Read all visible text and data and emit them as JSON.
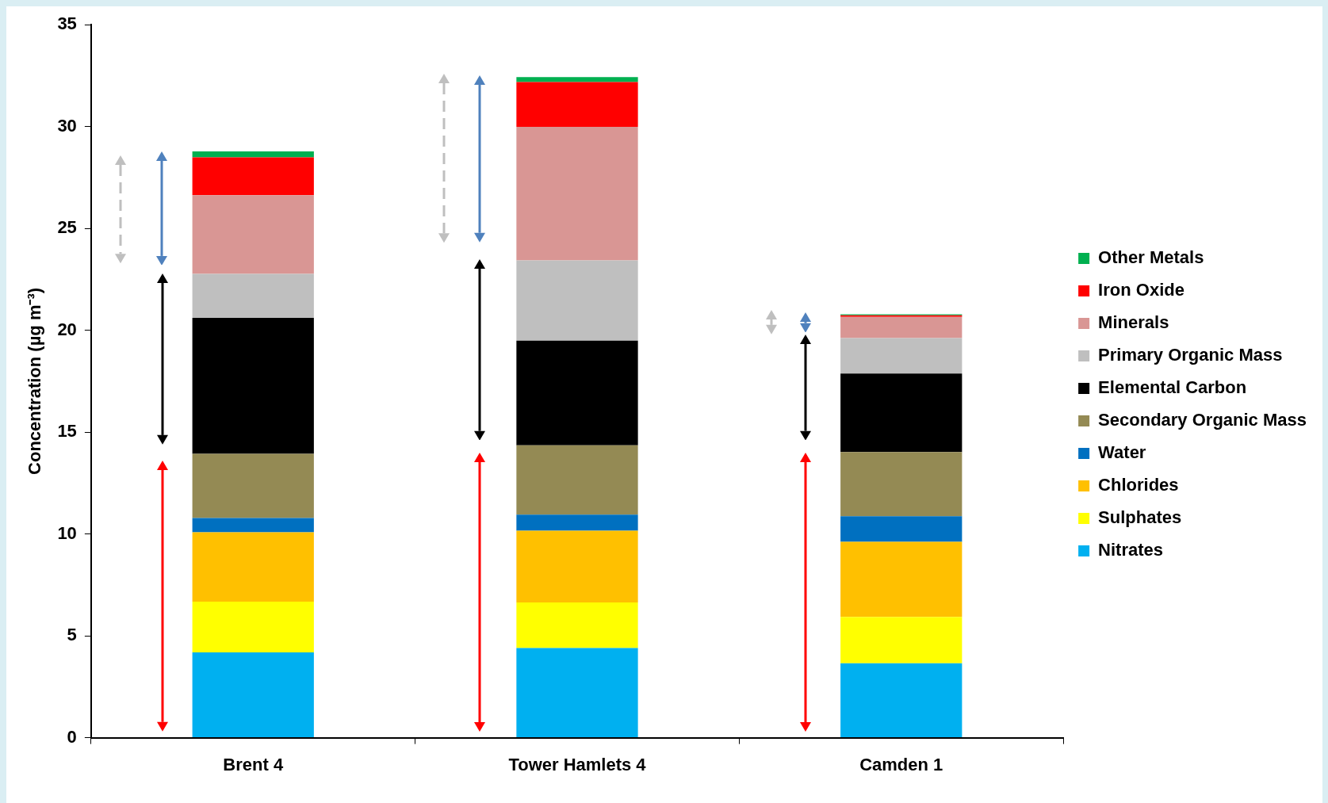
{
  "chart_data": {
    "type": "bar",
    "stacked": true,
    "ylabel": "Concentration (µg m⁻³)",
    "categories": [
      "Brent 4",
      "Tower Hamlets 4",
      "Camden 1"
    ],
    "ylim": [
      0,
      35
    ],
    "yticks": [
      0,
      5,
      10,
      15,
      20,
      25,
      30,
      35
    ],
    "grid": false,
    "legend": "right",
    "series": [
      {
        "name": "Nitrates",
        "color": "#00b0f0",
        "values": [
          4.19,
          4.4,
          3.65
        ]
      },
      {
        "name": "Sulphates",
        "color": "#ffff00",
        "values": [
          2.49,
          2.24,
          2.28
        ]
      },
      {
        "name": "Chlorides",
        "color": "#ffc000",
        "values": [
          3.4,
          3.52,
          3.69
        ]
      },
      {
        "name": "Water",
        "color": "#0070c0",
        "values": [
          0.7,
          0.79,
          1.25
        ]
      },
      {
        "name": "Secondary Organic Mass",
        "color": "#948a54",
        "values": [
          3.16,
          3.4,
          3.15
        ]
      },
      {
        "name": "Elemental Carbon",
        "color": "#000000",
        "values": [
          6.67,
          5.14,
          3.86
        ]
      },
      {
        "name": "Primary Organic Mass",
        "color": "#bfbfbf",
        "values": [
          2.16,
          3.94,
          1.74
        ]
      },
      {
        "name": "Minerals",
        "color": "#d99694",
        "values": [
          3.86,
          6.56,
          1.04
        ]
      },
      {
        "name": "Iron Oxide",
        "color": "#ff0000",
        "values": [
          1.86,
          2.2,
          0.08
        ]
      },
      {
        "name": "Other Metals",
        "color": "#00b050",
        "values": [
          0.29,
          0.24,
          0.04
        ]
      }
    ]
  }
}
